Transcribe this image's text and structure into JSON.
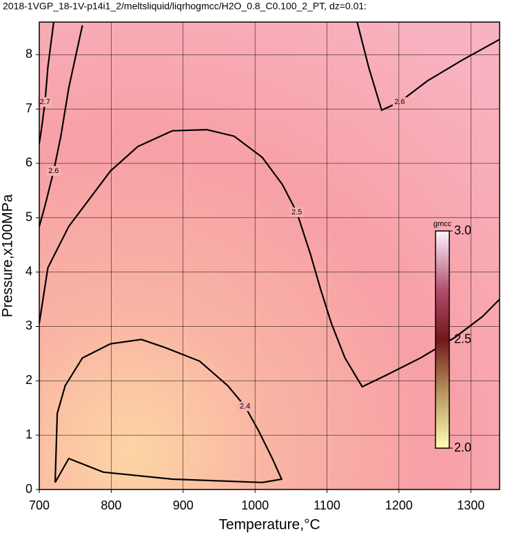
{
  "chart_data": {
    "type": "contour",
    "title": "2018-1VGP_18-1V-p14i1_2/meltsliquid/liqrhogmcc/H2O_0.8_C0.100_2_PT, dz=0.01:",
    "x_label": "Temperature,°C",
    "y_label": "Pressure,x100MPa",
    "xlim": [
      700,
      1340
    ],
    "xticks": [
      700,
      800,
      900,
      1000,
      1100,
      1200,
      1300
    ],
    "ylim": [
      0,
      8.6
    ],
    "yticks": [
      0,
      1,
      2,
      3,
      4,
      5,
      6,
      7,
      8
    ],
    "grid": true,
    "line_color": "#000000",
    "colorbar": {
      "label": "gmcc",
      "clim": [
        2.0,
        3.0
      ],
      "ticks": [
        {
          "value": 2.0,
          "label": "2.0"
        },
        2.5,
        {
          "value": 3.0,
          "label": "3.0"
        }
      ]
    },
    "contours": [
      {
        "level": 2.4,
        "x": [
          722,
          725,
          736,
          760,
          799,
          842,
          875,
          923,
          962,
          986,
          1005,
          1024,
          1037,
          1010,
          885,
          789,
          741,
          722
        ],
        "y": [
          0.13,
          1.4,
          1.91,
          2.42,
          2.68,
          2.76,
          2.61,
          2.36,
          1.91,
          1.53,
          1.08,
          0.57,
          0.19,
          0.13,
          0.19,
          0.32,
          0.57,
          0.13
        ]
      },
      {
        "level": 2.5,
        "x": [
          700,
          712,
          741,
          770,
          799,
          837,
          885,
          933,
          971,
          1010,
          1038,
          1058,
          1077,
          1091,
          1106,
          1125,
          1149,
          1182,
          1230,
          1278,
          1316,
          1340
        ],
        "y": [
          3.06,
          4.08,
          4.84,
          5.35,
          5.86,
          6.31,
          6.6,
          6.62,
          6.5,
          6.11,
          5.61,
          5.1,
          4.33,
          3.69,
          3.06,
          2.42,
          1.89,
          2.1,
          2.42,
          2.8,
          3.18,
          3.5
        ]
      },
      {
        "level": 2.6,
        "x": [
          760,
          741,
          730,
          720,
          708,
          700
        ],
        "y": [
          8.54,
          7.39,
          6.5,
          5.86,
          5.22,
          4.84
        ]
      },
      {
        "level": 2.6,
        "x": [
          1142,
          1158,
          1176,
          1201,
          1240,
          1288,
          1340
        ],
        "y": [
          8.6,
          7.77,
          6.98,
          7.13,
          7.52,
          7.9,
          8.28
        ]
      },
      {
        "level": 2.7,
        "x": [
          720,
          712,
          708,
          703,
          700
        ],
        "y": [
          8.6,
          7.77,
          7.13,
          6.62,
          6.37
        ]
      }
    ]
  }
}
